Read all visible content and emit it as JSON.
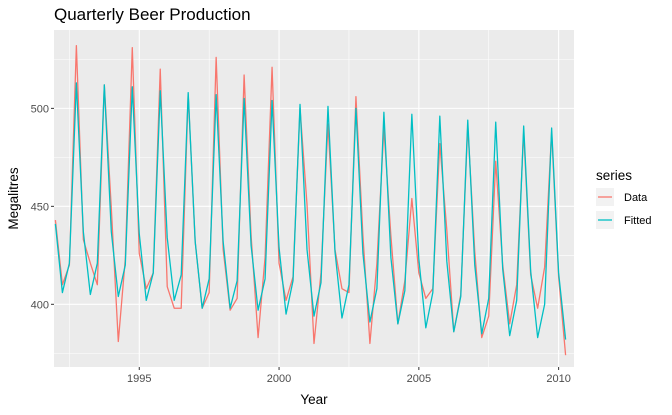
{
  "chart_data": {
    "type": "line",
    "title": "Quarterly Beer Production",
    "xlabel": "Year",
    "ylabel": "Megalitres",
    "xlim": [
      1991.95,
      2010.55
    ],
    "ylim": [
      368,
      540
    ],
    "x_ticks": [
      1995,
      2000,
      2005,
      2010
    ],
    "x_tick_labels": [
      "1995",
      "2000",
      "2005",
      "2010"
    ],
    "y_ticks": [
      400,
      450,
      500
    ],
    "y_tick_labels": [
      "400",
      "450",
      "500"
    ],
    "grid": true,
    "legend": {
      "title": "series",
      "position": "right"
    },
    "x_start": 1992.0,
    "x_step": 0.25,
    "series": [
      {
        "name": "Data",
        "color": "#F8766D",
        "values": [
          443,
          410,
          420,
          532,
          433,
          421,
          410,
          512,
          449,
          381,
          423,
          531,
          426,
          408,
          416,
          520,
          409,
          398,
          398,
          507,
          432,
          398,
          406,
          526,
          428,
          397,
          403,
          517,
          435,
          383,
          424,
          521,
          421,
          402,
          414,
          500,
          451,
          380,
          416,
          492,
          428,
          408,
          406,
          506,
          435,
          380,
          421,
          490,
          435,
          390,
          412,
          454,
          416,
          403,
          408,
          482,
          438,
          386,
          405,
          491,
          427,
          383,
          394,
          473,
          420,
          390,
          410,
          488,
          415,
          398,
          419,
          488,
          414,
          374
        ]
      },
      {
        "name": "Fitted",
        "color": "#00BFC4",
        "values": [
          441,
          406,
          421,
          513,
          437,
          405,
          421,
          512,
          437,
          404,
          420,
          511,
          436,
          402,
          416,
          509,
          434,
          402,
          415,
          508,
          432,
          398,
          413,
          507,
          432,
          398,
          412,
          505,
          430,
          397,
          413,
          504,
          429,
          395,
          412,
          502,
          428,
          394,
          411,
          501,
          427,
          393,
          410,
          500,
          426,
          391,
          408,
          498,
          424,
          390,
          407,
          497,
          423,
          388,
          406,
          496,
          422,
          386,
          404,
          494,
          420,
          385,
          403,
          493,
          418,
          384,
          402,
          491,
          417,
          383,
          400,
          490,
          416,
          382
        ]
      }
    ]
  }
}
